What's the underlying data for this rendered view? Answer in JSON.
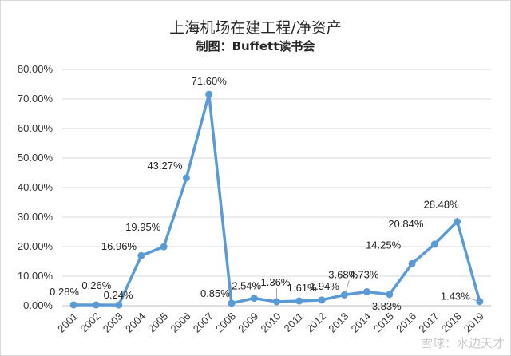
{
  "chart_data": {
    "type": "line",
    "title": "上海机场在建工程/净资产",
    "subtitle": "制图：Buffett读书会",
    "categories": [
      "2001",
      "2002",
      "2003",
      "2004",
      "2005",
      "2006",
      "2007",
      "2008",
      "2009",
      "2010",
      "2011",
      "2012",
      "2013",
      "2014",
      "2015",
      "2016",
      "2017",
      "2018",
      "2019"
    ],
    "values": [
      0.28,
      0.26,
      0.24,
      16.96,
      19.95,
      43.27,
      71.6,
      0.85,
      2.54,
      1.36,
      1.61,
      1.94,
      3.68,
      4.73,
      3.83,
      14.25,
      20.84,
      28.48,
      1.43
    ],
    "data_labels": [
      "0.28%",
      "0.26%",
      "0.24%",
      "16.96%",
      "19.95%",
      "43.27%",
      "71.60%",
      "0.85%",
      "2.54%",
      "1.36%",
      "1.61%",
      "1.94%",
      "3.68%",
      "4.73%",
      "3.83%",
      "14.25%",
      "20.84%",
      "28.48%",
      "1.43%"
    ],
    "yticks": [
      "0.00%",
      "10.00%",
      "20.00%",
      "30.00%",
      "40.00%",
      "50.00%",
      "60.00%",
      "70.00%",
      "80.00%"
    ],
    "ylim": [
      0,
      80
    ],
    "grid": true,
    "legend": "none",
    "line_color": "#5b9bd5",
    "grid_color": "#d9d9d9"
  },
  "watermark": "雪球：水边天才"
}
